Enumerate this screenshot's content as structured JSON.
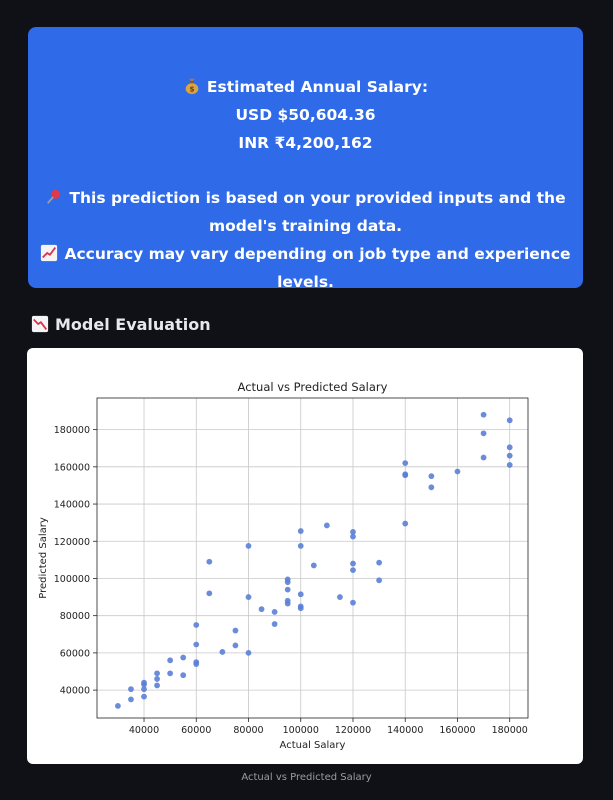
{
  "prediction": {
    "heading": "Estimated Annual Salary:",
    "usd": "USD $50,604.36",
    "inr": "INR ₹4,200,162",
    "note_line1": "This prediction is based on your provided inputs and the",
    "note_line2": "model's training data.",
    "accuracy_line1": "Accuracy may vary depending on job type and experience",
    "accuracy_line2": "levels.",
    "icons": [
      "money-bag-icon",
      "pushpin-icon",
      "chart-increasing-icon"
    ]
  },
  "section": {
    "title": "Model Evaluation",
    "icon": "chart-decreasing-icon"
  },
  "caption": "Actual vs Predicted Salary",
  "colors": {
    "background": "#0f1117",
    "card": "#2f6ae8",
    "point": "#5b7fd6"
  },
  "chart_data": {
    "type": "scatter",
    "title": "Actual vs Predicted Salary",
    "xlabel": "Actual Salary",
    "ylabel": "Predicted Salary",
    "xlim": [
      22000,
      187000
    ],
    "ylim": [
      25000,
      197000
    ],
    "xticks": [
      40000,
      60000,
      80000,
      100000,
      120000,
      140000,
      160000,
      180000
    ],
    "yticks": [
      40000,
      60000,
      80000,
      100000,
      120000,
      140000,
      160000,
      180000
    ],
    "grid": true,
    "points": [
      [
        30000,
        31500
      ],
      [
        35000,
        35000
      ],
      [
        35000,
        40500
      ],
      [
        40000,
        36500
      ],
      [
        40000,
        40500
      ],
      [
        40000,
        43000
      ],
      [
        40000,
        44000
      ],
      [
        45000,
        42500
      ],
      [
        45000,
        46000
      ],
      [
        45000,
        49000
      ],
      [
        50000,
        49000
      ],
      [
        50000,
        56000
      ],
      [
        55000,
        48000
      ],
      [
        55000,
        57500
      ],
      [
        60000,
        54000
      ],
      [
        60000,
        55000
      ],
      [
        60000,
        64500
      ],
      [
        60000,
        75000
      ],
      [
        65000,
        92000
      ],
      [
        65000,
        109000
      ],
      [
        70000,
        60500
      ],
      [
        75000,
        64000
      ],
      [
        75000,
        72000
      ],
      [
        80000,
        60000
      ],
      [
        80000,
        90000
      ],
      [
        80000,
        117500
      ],
      [
        85000,
        83500
      ],
      [
        90000,
        75500
      ],
      [
        90000,
        82000
      ],
      [
        95000,
        86500
      ],
      [
        95000,
        88000
      ],
      [
        95000,
        94000
      ],
      [
        95000,
        98000
      ],
      [
        95000,
        99500
      ],
      [
        100000,
        84000
      ],
      [
        100000,
        85000
      ],
      [
        100000,
        91500
      ],
      [
        100000,
        117500
      ],
      [
        100000,
        125500
      ],
      [
        105000,
        107000
      ],
      [
        110000,
        128500
      ],
      [
        115000,
        90000
      ],
      [
        120000,
        87000
      ],
      [
        120000,
        104500
      ],
      [
        120000,
        108000
      ],
      [
        120000,
        122500
      ],
      [
        120000,
        125000
      ],
      [
        130000,
        99000
      ],
      [
        130000,
        108500
      ],
      [
        140000,
        129500
      ],
      [
        140000,
        155500
      ],
      [
        140000,
        156000
      ],
      [
        140000,
        162000
      ],
      [
        150000,
        149000
      ],
      [
        150000,
        155000
      ],
      [
        160000,
        157500
      ],
      [
        170000,
        165000
      ],
      [
        170000,
        178000
      ],
      [
        170000,
        188000
      ],
      [
        180000,
        161000
      ],
      [
        180000,
        166000
      ],
      [
        180000,
        170500
      ],
      [
        180000,
        185000
      ]
    ]
  }
}
